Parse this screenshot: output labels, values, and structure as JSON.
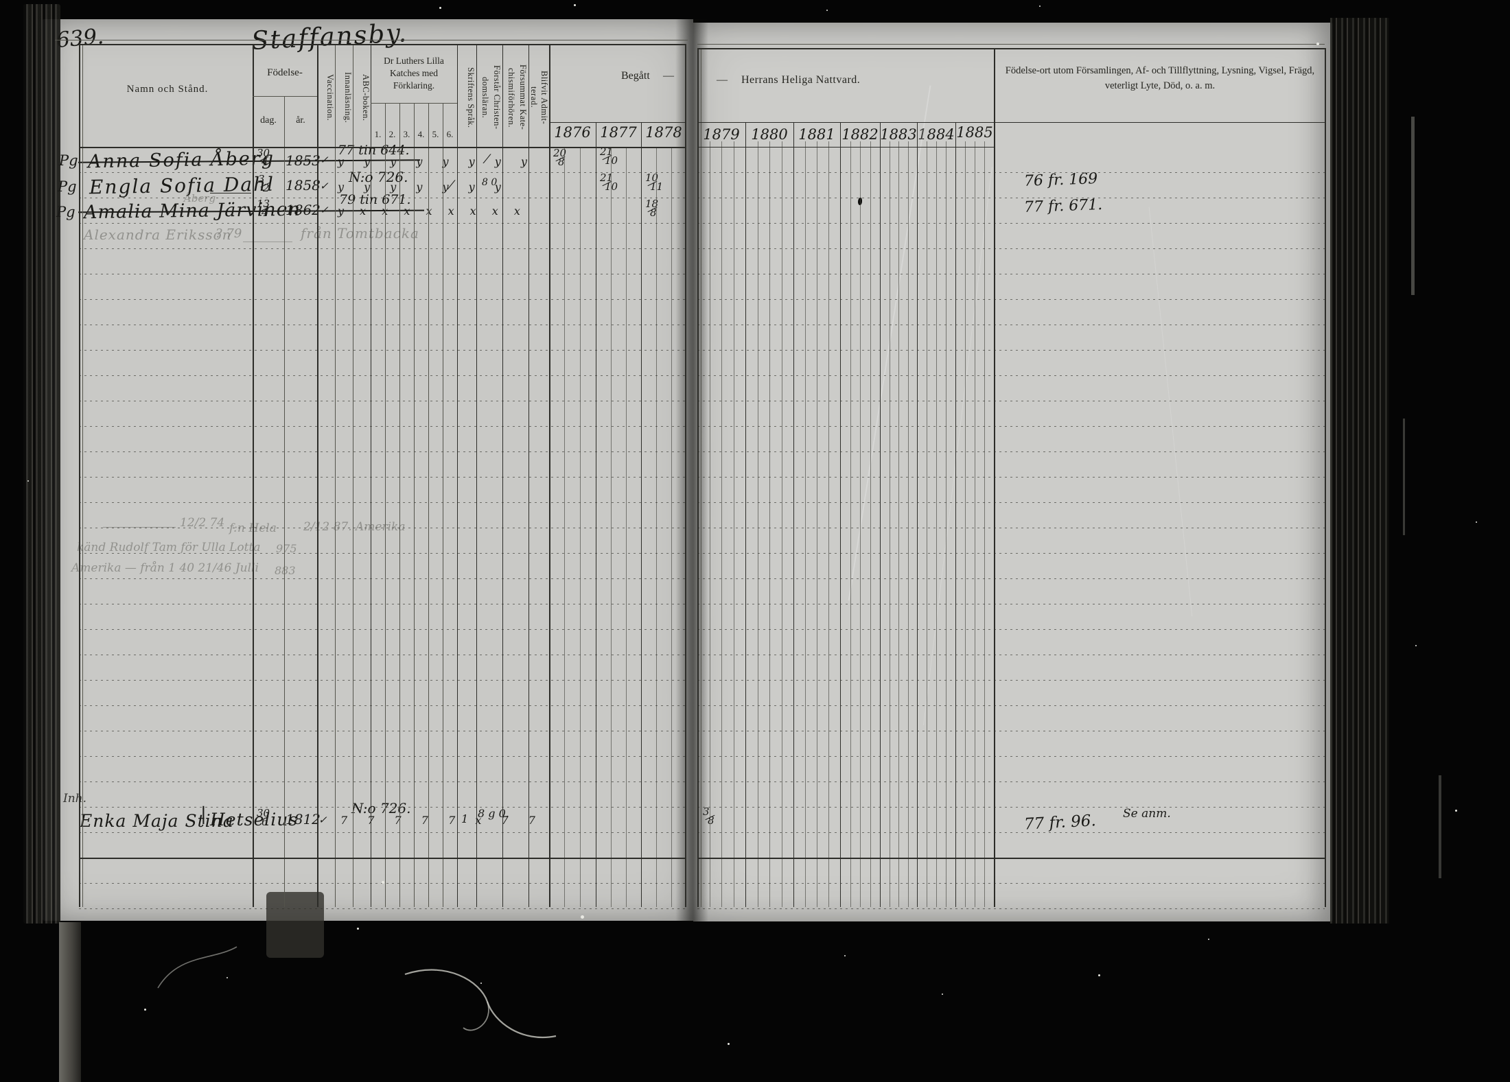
{
  "page": {
    "number": "639.",
    "title": "Staffansby."
  },
  "header": {
    "namn_och_stand": "Namn och Stånd.",
    "fodelse": "Födelse-",
    "dag": "dag.",
    "ar": "år.",
    "vaccination": "Vaccination.",
    "innanlasning": "Innanläsning.",
    "abc_boken": "ABC-boken.",
    "katekes": "Dr Luthers Lilla\nKatches med\nFörklaring.",
    "katekes_nums": [
      "1.",
      "2.",
      "3.",
      "4.",
      "5.",
      "6."
    ],
    "skriftens_sprak": "Skriftens Språk.",
    "forstar_christendomslaran": "Förstår Christen-\ndomsläran.",
    "forsummat_katechismiforhoren": "Försummat Kate-\nchismiförhören.",
    "blifvit_admitterad": "Blifvit Admit-\nterad.",
    "begatt": "Begått",
    "begatt_dash": "—",
    "nattvard_dash": "—",
    "nattvard": "Herrans Heliga Nattvard.",
    "years_left": [
      "1876",
      "1877",
      "1878"
    ],
    "years_right": [
      "1879",
      "1880",
      "1881",
      "1882",
      "1883",
      "1884",
      "1885"
    ],
    "notes_title": "Födelse-ort utom Församlingen, Af- och Tillflyttning, Lysning, Vigsel, Frägd, veterligt Lyte, Död, o. a. m."
  },
  "rows": [
    {
      "margin": "Pg",
      "name": "Anna Sofia Åberg",
      "born_day_month": "30/4",
      "born_year": "1853",
      "vacc": "✓",
      "book_note": "77 tin 644.",
      "marks": "y y y y y y y y",
      "sprak_mark": "⁄",
      "hhn_1876": "20/8",
      "hhn_1877": "21/10"
    },
    {
      "margin": "Pg",
      "name": "Engla Sofia Dahl",
      "born_day_month": "3/2",
      "born_year": "1858",
      "vacc": "✓",
      "book_note": "N:o 726.",
      "marks": "y y y y y y y",
      "sprak_mark": "⁄",
      "forstar_mark": "8 0",
      "hhn_1877": "21/10",
      "hhn_1878": "10/11",
      "flytt_note": "76 fr. 169"
    },
    {
      "margin": "Pg",
      "name": "Amalia Mina Järvinen",
      "pencil_over": "Åberg",
      "born_day_month": "13/4",
      "born_year": "1862",
      "vacc": "✓",
      "book_note": "79 tin 671.",
      "marks": "y x x x x x x x x",
      "hhn_1878": "18/8",
      "flytt_note": "77 fr. 671."
    },
    {
      "pencil_name": "Alexandra Eriksson",
      "pencil_mid": "? 79",
      "pencil_from": "från Tomtbacka"
    }
  ],
  "pencil_block": {
    "line1_date": "12/2 74",
    "line1_mid": "f:n Hela",
    "line1_right": "2/12 87. Amerika",
    "line2": "känd Rudolf Tam för Ulla Lotta",
    "line2_num": "975",
    "line3": "Amerika — från  1 40   21/46 Julli",
    "line3_num": "883"
  },
  "bottom_row": {
    "margin": "Inh.",
    "name": "Enka Maja Stina",
    "divider": "|",
    "name2": "Hetselius",
    "born_day_month": "30/6",
    "born_year": "1812",
    "vacc": "✓",
    "book_note": "N:o 726.",
    "marks": "7 7 7 7 7 x 7 7",
    "sprak_mark": "1",
    "forstar_mark": "8 g 0.",
    "hhn_1879": "3/8",
    "flytt_note": "77 fr. 96.",
    "se_anm": "Se anm."
  }
}
